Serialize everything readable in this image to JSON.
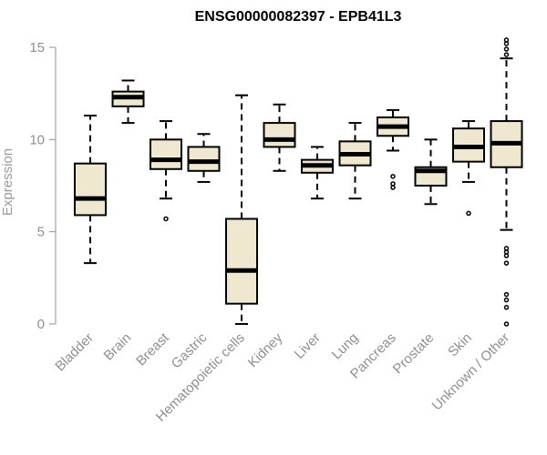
{
  "chart_data": {
    "type": "boxplot",
    "title": "ENSG00000082397 - EPB41L3",
    "xlabel": "",
    "ylabel": "Expression",
    "ylim": [
      0,
      15
    ],
    "yticks": [
      0,
      5,
      10,
      15
    ],
    "colors": {
      "box_fill": "#efe8d0",
      "stroke": "#000000",
      "axis": "#8f8f8f"
    },
    "categories": [
      "Bladder",
      "Brain",
      "Breast",
      "Gastric",
      "Hematopoietic cells",
      "Kidney",
      "Liver",
      "Lung",
      "Pancreas",
      "Prostate",
      "Skin",
      "Unknown / Other"
    ],
    "boxes": [
      {
        "name": "Bladder",
        "min": 3.3,
        "q1": 5.9,
        "median": 6.8,
        "q3": 8.7,
        "max": 11.3,
        "outliers": []
      },
      {
        "name": "Brain",
        "min": 10.9,
        "q1": 11.8,
        "median": 12.3,
        "q3": 12.6,
        "max": 13.2,
        "outliers": []
      },
      {
        "name": "Breast",
        "min": 6.8,
        "q1": 8.4,
        "median": 8.9,
        "q3": 10.0,
        "max": 11.0,
        "outliers": [
          5.7
        ]
      },
      {
        "name": "Gastric",
        "min": 7.7,
        "q1": 8.3,
        "median": 8.8,
        "q3": 9.6,
        "max": 10.3,
        "outliers": []
      },
      {
        "name": "Hematopoietic cells",
        "min": 0.0,
        "q1": 1.1,
        "median": 2.9,
        "q3": 5.7,
        "max": 12.4,
        "outliers": []
      },
      {
        "name": "Kidney",
        "min": 8.3,
        "q1": 9.6,
        "median": 10.0,
        "q3": 10.9,
        "max": 11.9,
        "outliers": []
      },
      {
        "name": "Liver",
        "min": 6.8,
        "q1": 8.2,
        "median": 8.6,
        "q3": 8.9,
        "max": 9.6,
        "outliers": []
      },
      {
        "name": "Lung",
        "min": 6.8,
        "q1": 8.6,
        "median": 9.2,
        "q3": 9.9,
        "max": 10.9,
        "outliers": []
      },
      {
        "name": "Pancreas",
        "min": 9.4,
        "q1": 10.2,
        "median": 10.7,
        "q3": 11.2,
        "max": 11.6,
        "outliers": [
          8.0,
          7.6,
          7.4
        ]
      },
      {
        "name": "Prostate",
        "min": 6.5,
        "q1": 7.5,
        "median": 8.3,
        "q3": 8.5,
        "max": 10.0,
        "outliers": []
      },
      {
        "name": "Skin",
        "min": 7.7,
        "q1": 8.8,
        "median": 9.6,
        "q3": 10.6,
        "max": 11.0,
        "outliers": [
          6.0
        ]
      },
      {
        "name": "Unknown / Other",
        "min": 5.1,
        "q1": 8.5,
        "median": 9.8,
        "q3": 11.0,
        "max": 14.4,
        "outliers": [
          15.4,
          15.2,
          14.9,
          14.6,
          4.1,
          3.9,
          3.7,
          3.3,
          1.6,
          1.3,
          0.9,
          0.0
        ]
      }
    ]
  }
}
